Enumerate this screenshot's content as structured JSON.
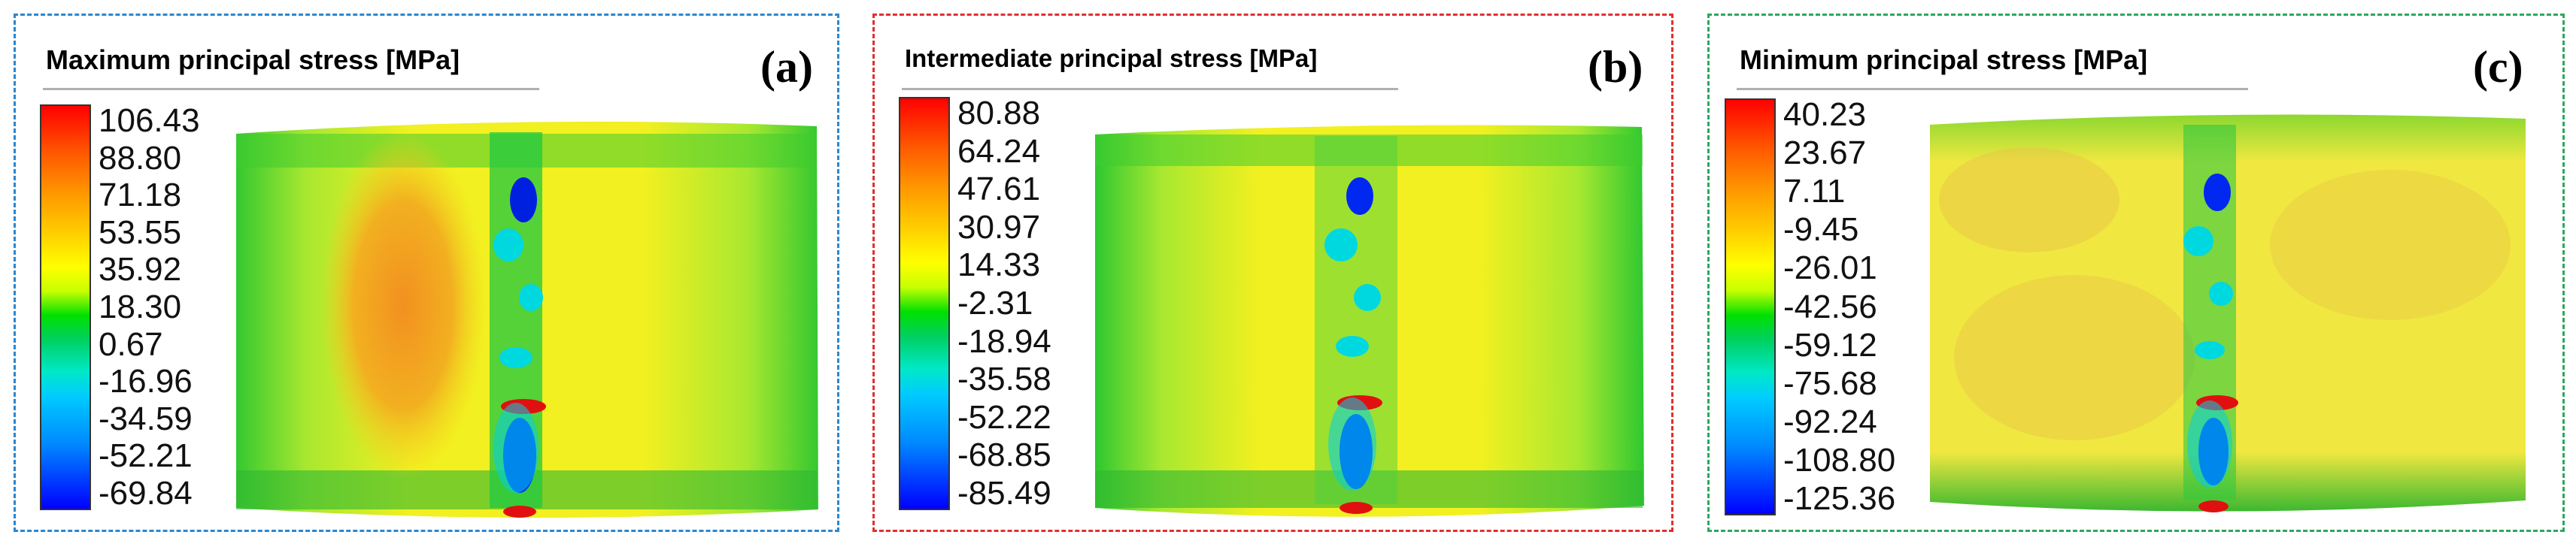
{
  "panels": [
    {
      "title": "Maximum principal stress [MPa]",
      "label": "(a)",
      "border_color": "#2a87d0",
      "ticks": [
        "106.43",
        "88.80",
        "71.18",
        "53.55",
        "35.92",
        "18.30",
        "0.67",
        "-16.96",
        "-34.59",
        "-52.21",
        "-69.84"
      ],
      "field": "max"
    },
    {
      "title": "Intermediate principal stress [MPa]",
      "label": "(b)",
      "border_color": "#e03030",
      "ticks": [
        "80.88",
        "64.24",
        "47.61",
        "30.97",
        "14.33",
        "-2.31",
        "-18.94",
        "-35.58",
        "-52.22",
        "-68.85",
        "-85.49"
      ],
      "field": "int"
    },
    {
      "title": "Minimum principal stress [MPa]",
      "label": "(c)",
      "border_color": "#2aa860",
      "ticks": [
        "40.23",
        "23.67",
        "7.11",
        "-9.45",
        "-26.01",
        "-42.56",
        "-59.12",
        "-75.68",
        "-92.24",
        "-108.80",
        "-125.36"
      ],
      "field": "min"
    }
  ],
  "colors": {
    "high": "#ff0000",
    "mid": "#ffff00",
    "green": "#00d000",
    "cyan": "#00e8e8",
    "low": "#0000ff"
  }
}
